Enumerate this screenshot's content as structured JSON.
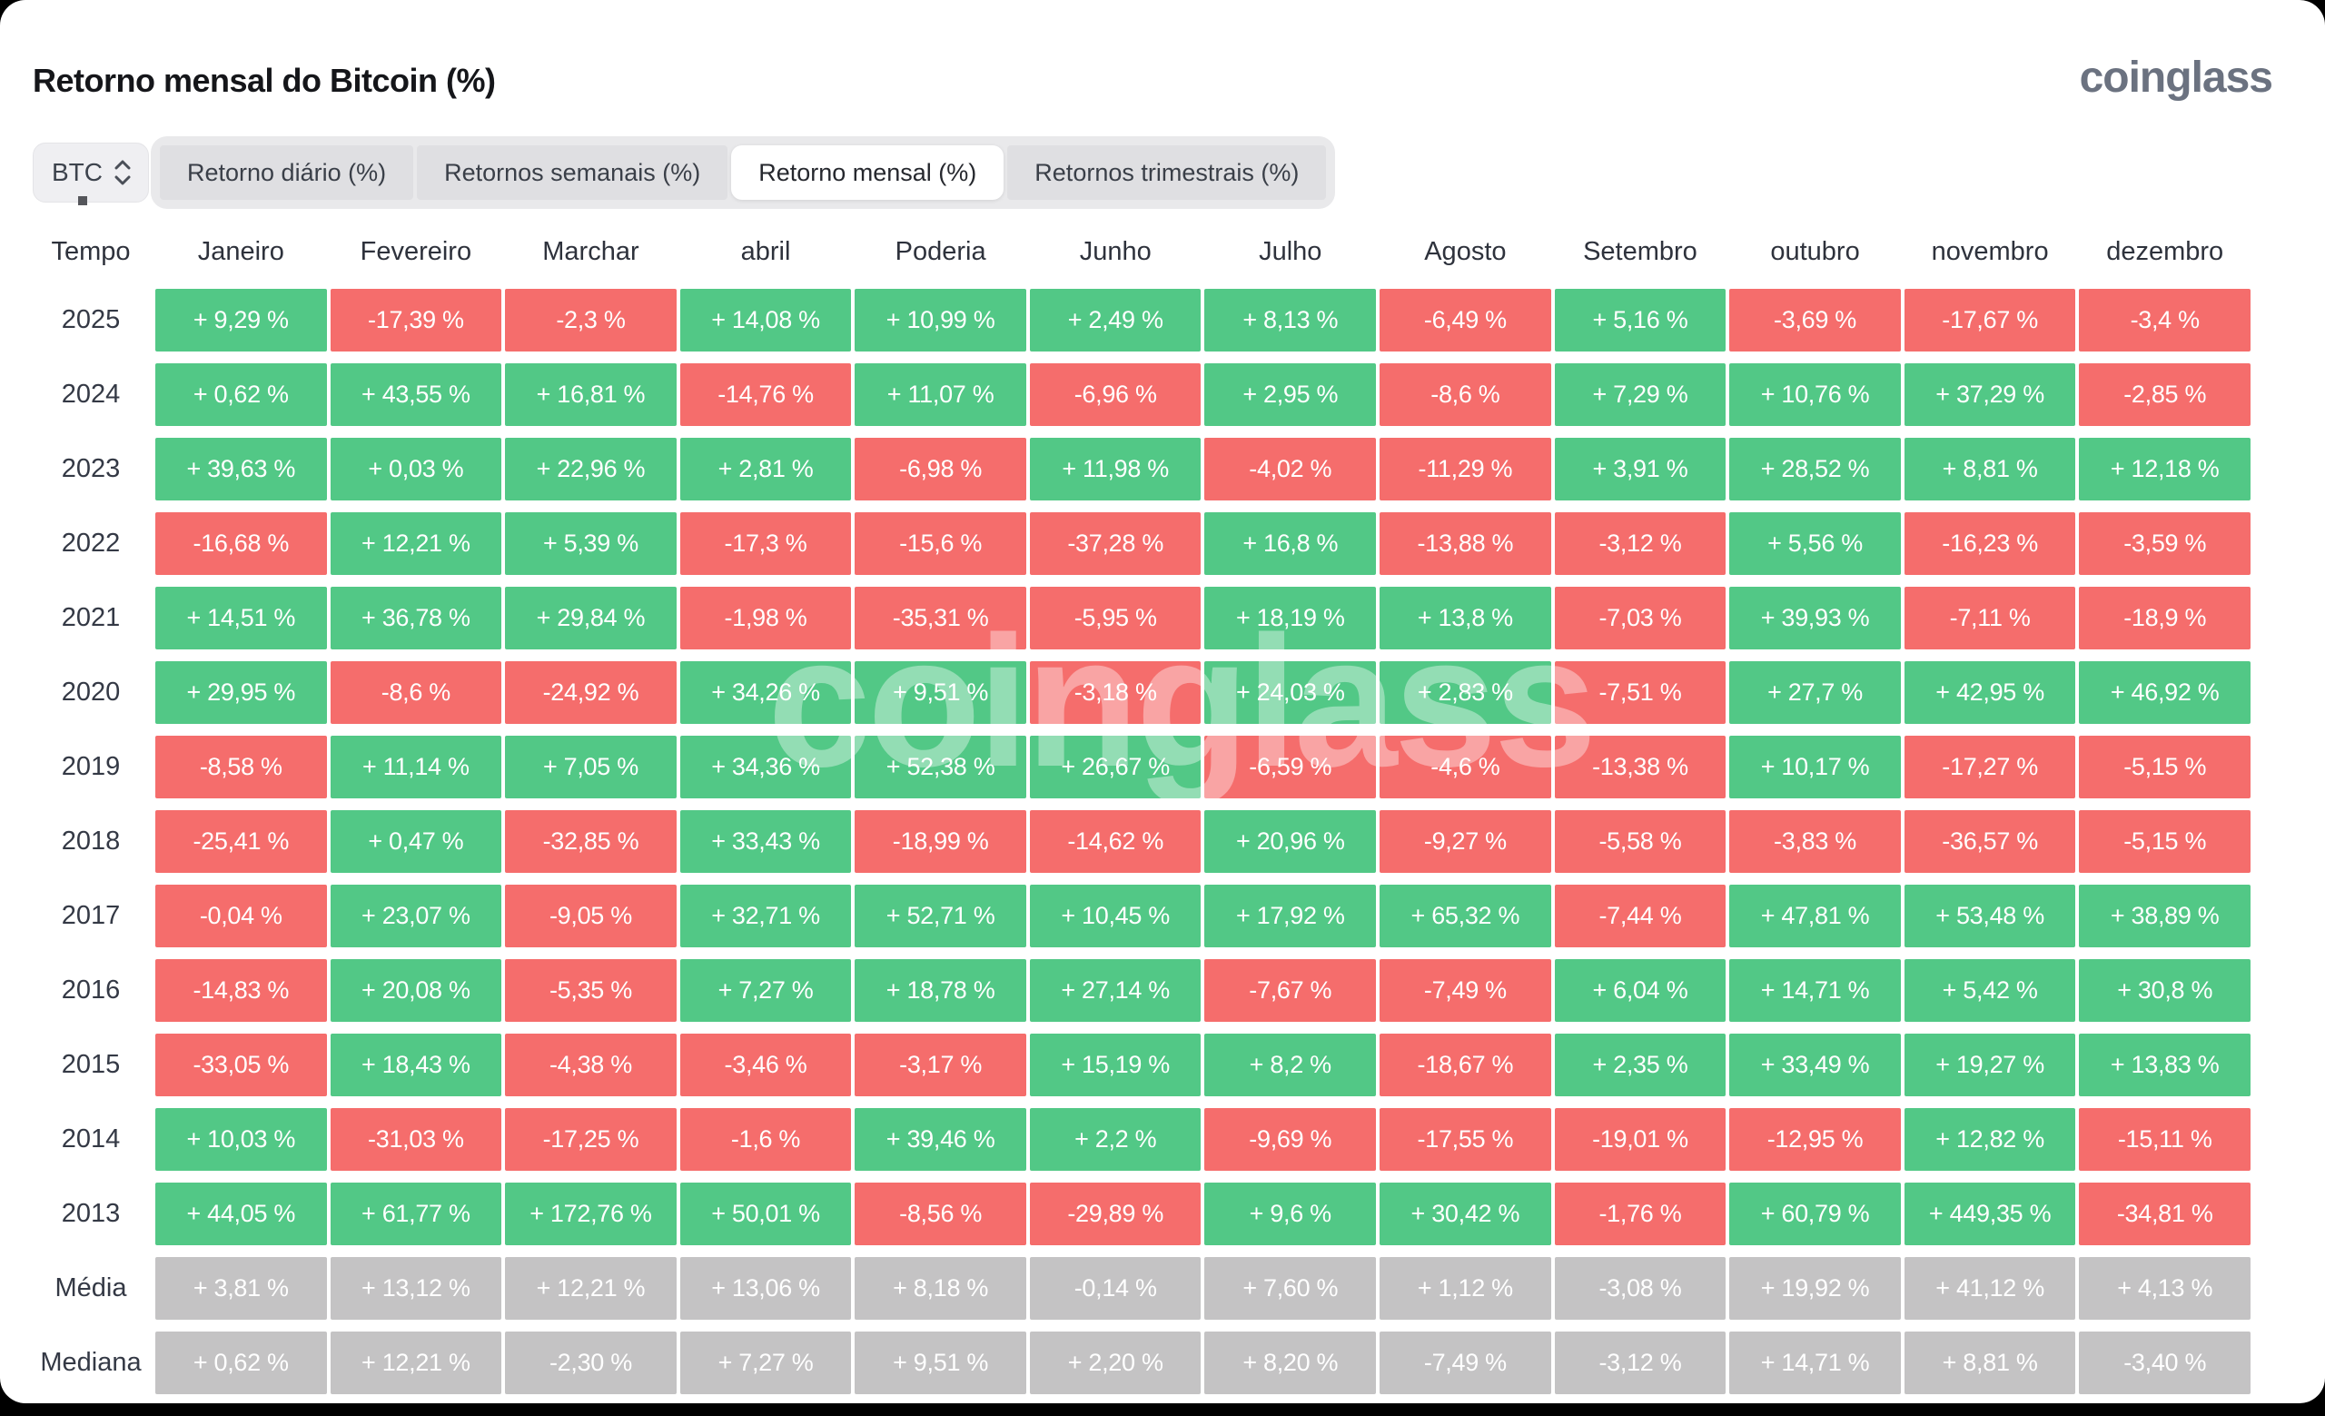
{
  "page": {
    "title": "Retorno mensal do Bitcoin (%)",
    "logo_text": "coinglass",
    "watermark_text": "coinglass"
  },
  "colors": {
    "positive": "#52C886",
    "negative": "#F56D6C",
    "neutral": "#C4C3C4",
    "card_background": "#FFFFFF",
    "outer_background": "#000000"
  },
  "controls": {
    "coin_selector": {
      "value": "BTC",
      "icon": "updown-chevron-icon"
    },
    "tabs": [
      {
        "label": "Retorno diário (%)",
        "active": false
      },
      {
        "label": "Retornos semanais (%)",
        "active": false
      },
      {
        "label": "Retorno mensal (%)",
        "active": true
      },
      {
        "label": "Retornos trimestrais (%)",
        "active": false
      }
    ]
  },
  "chart_data": {
    "type": "heatmap",
    "title": "Retorno mensal do Bitcoin (%)",
    "legend_position": "none",
    "columns": [
      "Tempo",
      "Janeiro",
      "Fevereiro",
      "Marchar",
      "abril",
      "Poderia",
      "Junho",
      "Julho",
      "Agosto",
      "Setembro",
      "outubro",
      "novembro",
      "dezembro"
    ],
    "rows": [
      {
        "label": "2025",
        "type": "year",
        "values": [
          "+ 9,29 %",
          "-17,39 %",
          "-2,3 %",
          "+ 14,08 %",
          "+ 10,99 %",
          "+ 2,49 %",
          "+ 8,13 %",
          "-6,49 %",
          "+ 5,16 %",
          "-3,69 %",
          "-17,67 %",
          "-3,4 %"
        ]
      },
      {
        "label": "2024",
        "type": "year",
        "values": [
          "+ 0,62 %",
          "+ 43,55 %",
          "+ 16,81 %",
          "-14,76 %",
          "+ 11,07 %",
          "-6,96 %",
          "+ 2,95 %",
          "-8,6 %",
          "+ 7,29 %",
          "+ 10,76 %",
          "+ 37,29 %",
          "-2,85 %"
        ]
      },
      {
        "label": "2023",
        "type": "year",
        "values": [
          "+ 39,63 %",
          "+ 0,03 %",
          "+ 22,96 %",
          "+ 2,81 %",
          "-6,98 %",
          "+ 11,98 %",
          "-4,02 %",
          "-11,29 %",
          "+ 3,91 %",
          "+ 28,52 %",
          "+ 8,81 %",
          "+ 12,18 %"
        ]
      },
      {
        "label": "2022",
        "type": "year",
        "values": [
          "-16,68 %",
          "+ 12,21 %",
          "+ 5,39 %",
          "-17,3 %",
          "-15,6 %",
          "-37,28 %",
          "+ 16,8 %",
          "-13,88 %",
          "-3,12 %",
          "+ 5,56 %",
          "-16,23 %",
          "-3,59 %"
        ]
      },
      {
        "label": "2021",
        "type": "year",
        "values": [
          "+ 14,51 %",
          "+ 36,78 %",
          "+ 29,84 %",
          "-1,98 %",
          "-35,31 %",
          "-5,95 %",
          "+ 18,19 %",
          "+ 13,8 %",
          "-7,03 %",
          "+ 39,93 %",
          "-7,11 %",
          "-18,9 %"
        ]
      },
      {
        "label": "2020",
        "type": "year",
        "values": [
          "+ 29,95 %",
          "-8,6 %",
          "-24,92 %",
          "+ 34,26 %",
          "+ 9,51 %",
          "-3,18 %",
          "+ 24,03 %",
          "+ 2,83 %",
          "-7,51 %",
          "+ 27,7 %",
          "+ 42,95 %",
          "+ 46,92 %"
        ]
      },
      {
        "label": "2019",
        "type": "year",
        "values": [
          "-8,58 %",
          "+ 11,14 %",
          "+ 7,05 %",
          "+ 34,36 %",
          "+ 52,38 %",
          "+ 26,67 %",
          "-6,59 %",
          "-4,6 %",
          "-13,38 %",
          "+ 10,17 %",
          "-17,27 %",
          "-5,15 %"
        ]
      },
      {
        "label": "2018",
        "type": "year",
        "values": [
          "-25,41 %",
          "+ 0,47 %",
          "-32,85 %",
          "+ 33,43 %",
          "-18,99 %",
          "-14,62 %",
          "+ 20,96 %",
          "-9,27 %",
          "-5,58 %",
          "-3,83 %",
          "-36,57 %",
          "-5,15 %"
        ]
      },
      {
        "label": "2017",
        "type": "year",
        "values": [
          "-0,04 %",
          "+ 23,07 %",
          "-9,05 %",
          "+ 32,71 %",
          "+ 52,71 %",
          "+ 10,45 %",
          "+ 17,92 %",
          "+ 65,32 %",
          "-7,44 %",
          "+ 47,81 %",
          "+ 53,48 %",
          "+ 38,89 %"
        ]
      },
      {
        "label": "2016",
        "type": "year",
        "values": [
          "-14,83 %",
          "+ 20,08 %",
          "-5,35 %",
          "+ 7,27 %",
          "+ 18,78 %",
          "+ 27,14 %",
          "-7,67 %",
          "-7,49 %",
          "+ 6,04 %",
          "+ 14,71 %",
          "+ 5,42 %",
          "+ 30,8 %"
        ]
      },
      {
        "label": "2015",
        "type": "year",
        "values": [
          "-33,05 %",
          "+ 18,43 %",
          "-4,38 %",
          "-3,46 %",
          "-3,17 %",
          "+ 15,19 %",
          "+ 8,2 %",
          "-18,67 %",
          "+ 2,35 %",
          "+ 33,49 %",
          "+ 19,27 %",
          "+ 13,83 %"
        ]
      },
      {
        "label": "2014",
        "type": "year",
        "values": [
          "+ 10,03 %",
          "-31,03 %",
          "-17,25 %",
          "-1,6 %",
          "+ 39,46 %",
          "+ 2,2 %",
          "-9,69 %",
          "-17,55 %",
          "-19,01 %",
          "-12,95 %",
          "+ 12,82 %",
          "-15,11 %"
        ]
      },
      {
        "label": "2013",
        "type": "year",
        "values": [
          "+ 44,05 %",
          "+ 61,77 %",
          "+ 172,76 %",
          "+ 50,01 %",
          "-8,56 %",
          "-29,89 %",
          "+ 9,6 %",
          "+ 30,42 %",
          "-1,76 %",
          "+ 60,79 %",
          "+ 449,35 %",
          "-34,81 %"
        ]
      },
      {
        "label": "Média",
        "type": "aggregate",
        "values": [
          "+ 3,81 %",
          "+ 13,12 %",
          "+ 12,21 %",
          "+ 13,06 %",
          "+ 8,18 %",
          "-0,14 %",
          "+ 7,60 %",
          "+ 1,12 %",
          "-3,08 %",
          "+ 19,92 %",
          "+ 41,12 %",
          "+ 4,13 %"
        ]
      },
      {
        "label": "Mediana",
        "type": "aggregate",
        "values": [
          "+ 0,62 %",
          "+ 12,21 %",
          "-2,30 %",
          "+ 7,27 %",
          "+ 9,51 %",
          "+ 2,20 %",
          "+ 8,20 %",
          "-7,49 %",
          "-3,12 %",
          "+ 14,71 %",
          "+ 8,81 %",
          "-3,40 %"
        ]
      }
    ]
  }
}
